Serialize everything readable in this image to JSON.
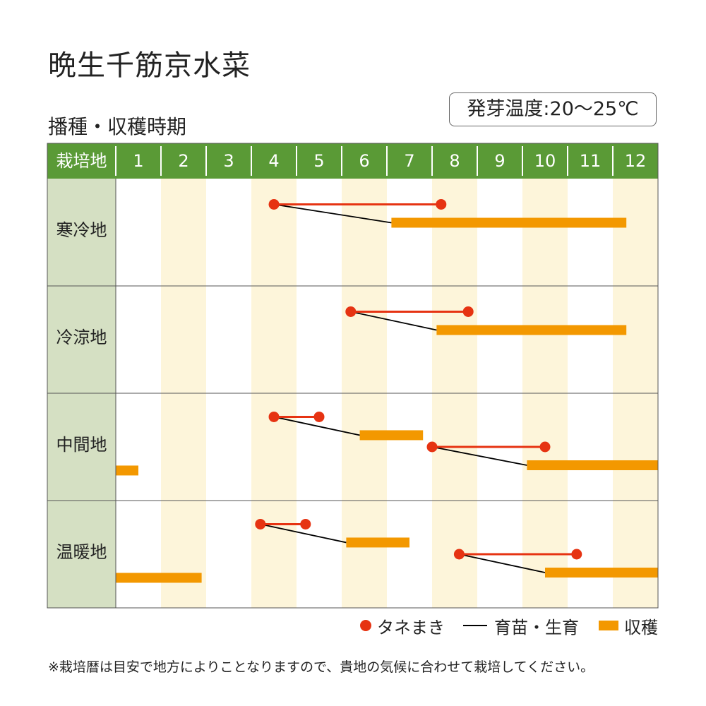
{
  "title": "晩生千筋京水菜",
  "subtitle": "播種・収穫時期",
  "germination_temp": "発芽温度:20〜25℃",
  "legend": {
    "sowing": "タネまき",
    "seedling": "育苗・生育",
    "harvest": "収穫"
  },
  "note": "※栽培暦は目安で地方によりことなりますので、貴地の気候に合わせて栽培してください。",
  "colors": {
    "header_green": "#5a9a36",
    "row_label_bg": "#d5e0c3",
    "month_stripe": "#fdf5da",
    "sowing_red": "#e63312",
    "harvest_orange": "#f39800",
    "seedling_line": "#000000"
  },
  "chart_data": {
    "type": "gantt",
    "header_label": "栽培地",
    "months": [
      "1",
      "2",
      "3",
      "4",
      "5",
      "6",
      "7",
      "8",
      "9",
      "10",
      "11",
      "12"
    ],
    "x_range": [
      1,
      13
    ],
    "regions": [
      {
        "name": "寒冷地",
        "cycles": [
          {
            "sowing": [
              4.5,
              8.2
            ],
            "harvest": [
              7.1,
              12.3
            ]
          }
        ]
      },
      {
        "name": "冷涼地",
        "cycles": [
          {
            "sowing": [
              6.2,
              8.8
            ],
            "harvest": [
              8.1,
              12.3
            ]
          }
        ]
      },
      {
        "name": "中間地",
        "cycles": [
          {
            "sowing": [
              4.5,
              5.5
            ],
            "harvest": [
              6.4,
              7.8
            ]
          },
          {
            "sowing": [
              8.0,
              10.5
            ],
            "harvest": [
              10.1,
              13.0
            ]
          },
          {
            "sowing": null,
            "harvest": [
              1.0,
              1.5
            ]
          }
        ]
      },
      {
        "name": "温暖地",
        "cycles": [
          {
            "sowing": [
              4.2,
              5.2
            ],
            "harvest": [
              6.1,
              7.5
            ]
          },
          {
            "sowing": [
              8.6,
              11.2
            ],
            "harvest": [
              10.5,
              13.0
            ]
          },
          {
            "sowing": null,
            "harvest": [
              1.0,
              2.9
            ]
          }
        ]
      }
    ]
  }
}
